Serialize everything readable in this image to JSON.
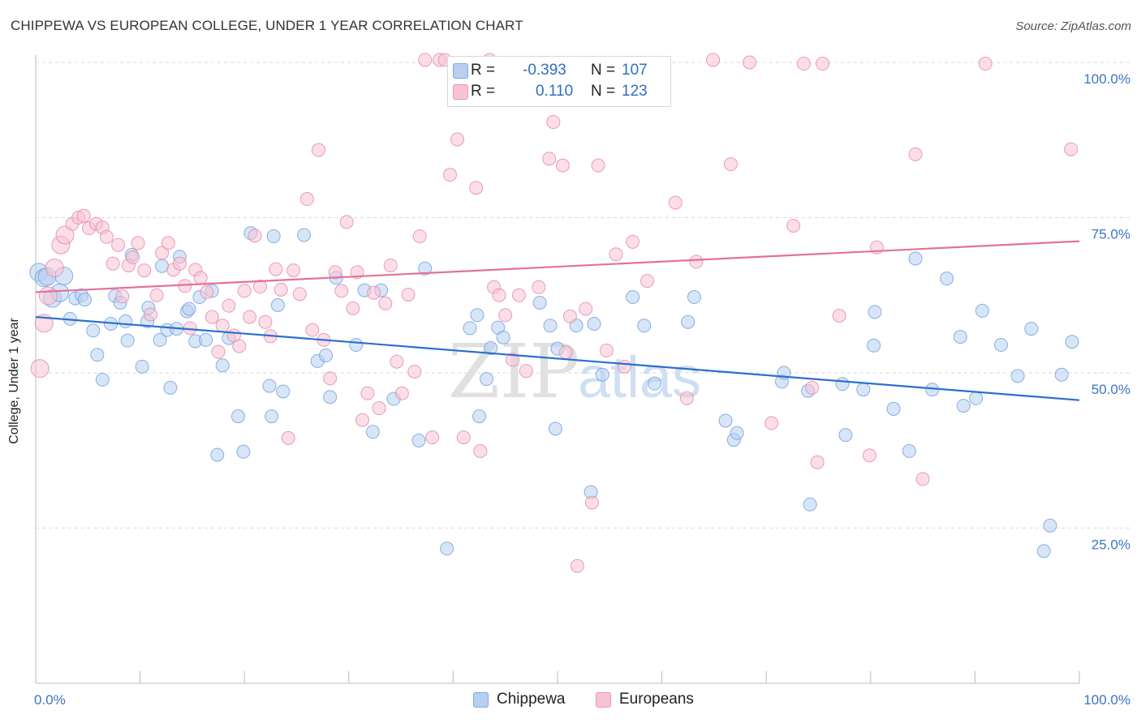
{
  "title": "CHIPPEWA VS EUROPEAN COLLEGE, UNDER 1 YEAR CORRELATION CHART",
  "source": "Source: ZipAtlas.com",
  "watermark": {
    "zip": "ZIP",
    "atlas": "atlas"
  },
  "legend": {
    "rows": [
      {
        "r_label": "R =",
        "r_value": "-0.393",
        "n_label": "N =",
        "n_value": "107",
        "color": "#b8cff0",
        "border": "#7ea6df"
      },
      {
        "r_label": "R =",
        "r_value": "0.110",
        "n_label": "N =",
        "n_value": "123",
        "color": "#f7c3d3",
        "border": "#ec94b2"
      }
    ]
  },
  "bottom_legend": [
    {
      "label": "Chippewa",
      "color": "#b8cff0",
      "border": "#7ea6df"
    },
    {
      "label": "Europeans",
      "color": "#f7c3d3",
      "border": "#ec94b2"
    }
  ],
  "chart_data": {
    "type": "scatter",
    "title": "CHIPPEWA VS EUROPEAN COLLEGE, UNDER 1 YEAR CORRELATION CHART",
    "xlabel": "",
    "ylabel": "College, Under 1 year",
    "xlim": [
      0,
      100
    ],
    "ylim": [
      0,
      100
    ],
    "x_tick_labels": [
      "0.0%",
      "100.0%"
    ],
    "y_tick_labels": [
      "25.0%",
      "50.0%",
      "75.0%",
      "100.0%"
    ],
    "y_ticks": [
      25,
      50,
      75,
      100
    ],
    "grid": "horizontal dashed",
    "legend_position": "top-center",
    "series": [
      {
        "name": "Chippewa",
        "color": "#6a9fdf",
        "fill": "#b8cff0",
        "trend": {
          "x": [
            0,
            100
          ],
          "y": [
            59.0,
            45.6
          ]
        },
        "points": [
          [
            0.3,
            66.2
          ],
          [
            0.8,
            65.3
          ],
          [
            1.1,
            65.5
          ],
          [
            1.6,
            62
          ],
          [
            2.3,
            62.9
          ],
          [
            2.7,
            65.6
          ],
          [
            3.3,
            58.7
          ],
          [
            3.8,
            62
          ],
          [
            4.4,
            62.5
          ],
          [
            4.7,
            61.8
          ],
          [
            5.5,
            56.8
          ],
          [
            5.9,
            52.9
          ],
          [
            6.4,
            48.9
          ],
          [
            7.2,
            57.9
          ],
          [
            7.6,
            62.4
          ],
          [
            8.1,
            61.3
          ],
          [
            8.6,
            58.3
          ],
          [
            8.8,
            55.2
          ],
          [
            9.2,
            69
          ],
          [
            10.2,
            51
          ],
          [
            10.7,
            58.3
          ],
          [
            10.8,
            60.5
          ],
          [
            11.9,
            55.3
          ],
          [
            12.1,
            67.2
          ],
          [
            12.6,
            56.9
          ],
          [
            12.9,
            47.6
          ],
          [
            13.5,
            57.1
          ],
          [
            13.8,
            68.7
          ],
          [
            14.5,
            59.9
          ],
          [
            14.7,
            60.3
          ],
          [
            15.3,
            55.1
          ],
          [
            15.7,
            62.2
          ],
          [
            16.3,
            55.3
          ],
          [
            16.9,
            63.2
          ],
          [
            17.4,
            36.8
          ],
          [
            17.9,
            51.2
          ],
          [
            18.5,
            55.6
          ],
          [
            19.4,
            43
          ],
          [
            19.9,
            37.3
          ],
          [
            20.6,
            72.5
          ],
          [
            22.4,
            47.9
          ],
          [
            22.6,
            43
          ],
          [
            22.8,
            72
          ],
          [
            23.2,
            60.9
          ],
          [
            23.7,
            47
          ],
          [
            25.7,
            72.2
          ],
          [
            27,
            51.9
          ],
          [
            27.8,
            52.8
          ],
          [
            28.2,
            46.1
          ],
          [
            28.8,
            65.3
          ],
          [
            30.7,
            54.5
          ],
          [
            31.5,
            63.3
          ],
          [
            32.3,
            40.5
          ],
          [
            33.1,
            63.3
          ],
          [
            34.3,
            45.8
          ],
          [
            36.7,
            39.1
          ],
          [
            37.3,
            66.8
          ],
          [
            39.4,
            21.7
          ],
          [
            41.6,
            57.2
          ],
          [
            42.3,
            59.3
          ],
          [
            42.5,
            43
          ],
          [
            43.2,
            49
          ],
          [
            43.6,
            54
          ],
          [
            44.3,
            57.3
          ],
          [
            44.8,
            55.7
          ],
          [
            48.3,
            61.3
          ],
          [
            49.3,
            57.6
          ],
          [
            49.8,
            41
          ],
          [
            50,
            53.9
          ],
          [
            51.8,
            57.6
          ],
          [
            53.2,
            30.8
          ],
          [
            53.5,
            57.9
          ],
          [
            54.3,
            49.7
          ],
          [
            57.2,
            62.2
          ],
          [
            58.3,
            57.6
          ],
          [
            59.3,
            48.3
          ],
          [
            62.5,
            58.2
          ],
          [
            63.1,
            62.2
          ],
          [
            66.1,
            42.3
          ],
          [
            66.9,
            39.2
          ],
          [
            67.2,
            40.3
          ],
          [
            71.5,
            48.6
          ],
          [
            71.7,
            50
          ],
          [
            74,
            47.1
          ],
          [
            74.2,
            28.8
          ],
          [
            77.3,
            48.2
          ],
          [
            77.6,
            40
          ],
          [
            79.3,
            47.3
          ],
          [
            80.3,
            54.4
          ],
          [
            80.4,
            59.8
          ],
          [
            82.2,
            44.2
          ],
          [
            83.7,
            37.4
          ],
          [
            84.3,
            68.4
          ],
          [
            85.9,
            47.3
          ],
          [
            87.3,
            65.2
          ],
          [
            88.6,
            55.8
          ],
          [
            88.9,
            44.7
          ],
          [
            90.1,
            45.9
          ],
          [
            90.7,
            60
          ],
          [
            92.5,
            54.5
          ],
          [
            94.1,
            49.5
          ],
          [
            95.4,
            57.1
          ],
          [
            96.6,
            21.3
          ],
          [
            97.2,
            25.4
          ],
          [
            98.3,
            49.7
          ],
          [
            99.3,
            55
          ]
        ]
      },
      {
        "name": "Europeans",
        "color": "#e685a6",
        "fill": "#f7c3d3",
        "trend": {
          "x": [
            0,
            100
          ],
          "y": [
            63.0,
            71.2
          ]
        },
        "points": [
          [
            0.4,
            50.7
          ],
          [
            0.8,
            58
          ],
          [
            1.2,
            62.4
          ],
          [
            1.8,
            66.9
          ],
          [
            2.4,
            70.6
          ],
          [
            2.8,
            72.2
          ],
          [
            3.5,
            74
          ],
          [
            4.1,
            75
          ],
          [
            4.6,
            75.3
          ],
          [
            5.1,
            73.3
          ],
          [
            5.8,
            74
          ],
          [
            6.4,
            73.4
          ],
          [
            6.8,
            71.9
          ],
          [
            7.4,
            67.6
          ],
          [
            7.9,
            70.6
          ],
          [
            8.3,
            62.3
          ],
          [
            8.9,
            67.3
          ],
          [
            9.3,
            68.6
          ],
          [
            9.8,
            70.9
          ],
          [
            10.4,
            66.5
          ],
          [
            11,
            59.4
          ],
          [
            11.6,
            62.5
          ],
          [
            12.1,
            69.3
          ],
          [
            12.7,
            70.9
          ],
          [
            13.2,
            66.6
          ],
          [
            13.8,
            67.6
          ],
          [
            14.3,
            64
          ],
          [
            14.8,
            57.2
          ],
          [
            15.3,
            66.6
          ],
          [
            15.8,
            65.3
          ],
          [
            16.4,
            63
          ],
          [
            16.9,
            59
          ],
          [
            17.5,
            53.4
          ],
          [
            17.9,
            57.6
          ],
          [
            18.5,
            60.8
          ],
          [
            19,
            56
          ],
          [
            19.5,
            54.3
          ],
          [
            20,
            63.2
          ],
          [
            20.5,
            59
          ],
          [
            21,
            72.1
          ],
          [
            21.5,
            63.9
          ],
          [
            22,
            58.2
          ],
          [
            22.5,
            55.9
          ],
          [
            23,
            66.7
          ],
          [
            23.5,
            63.4
          ],
          [
            24.2,
            39.5
          ],
          [
            24.7,
            66.5
          ],
          [
            25.3,
            62.7
          ],
          [
            26,
            78
          ],
          [
            26.5,
            56.9
          ],
          [
            27.1,
            85.9
          ],
          [
            27.6,
            55.3
          ],
          [
            28.2,
            49.1
          ],
          [
            28.7,
            66.2
          ],
          [
            29.3,
            63.2
          ],
          [
            29.8,
            74.3
          ],
          [
            30.4,
            60.4
          ],
          [
            30.8,
            66.2
          ],
          [
            31.3,
            42.4
          ],
          [
            31.8,
            46.7
          ],
          [
            32.4,
            62.9
          ],
          [
            32.9,
            44.3
          ],
          [
            33.5,
            61.2
          ],
          [
            34,
            67.3
          ],
          [
            34.6,
            51.8
          ],
          [
            35.1,
            46.7
          ],
          [
            35.7,
            62.6
          ],
          [
            36.3,
            50.2
          ],
          [
            36.8,
            72
          ],
          [
            37.3,
            100.4
          ],
          [
            38,
            39.6
          ],
          [
            38.7,
            100.4
          ],
          [
            39.2,
            100.4
          ],
          [
            39.7,
            81.9
          ],
          [
            40.4,
            87.6
          ],
          [
            41,
            39.6
          ],
          [
            41.6,
            99.8
          ],
          [
            42.2,
            79.8
          ],
          [
            42.6,
            37.4
          ],
          [
            43.5,
            100.4
          ],
          [
            43.9,
            63.8
          ],
          [
            44.4,
            62.5
          ],
          [
            45,
            59.3
          ],
          [
            45.7,
            52.1
          ],
          [
            46.3,
            62.5
          ],
          [
            47,
            50.3
          ],
          [
            48.2,
            63.8
          ],
          [
            48.6,
            99.8
          ],
          [
            49.2,
            84.5
          ],
          [
            49.6,
            90.4
          ],
          [
            50.5,
            83.4
          ],
          [
            50.8,
            53.3
          ],
          [
            51.2,
            59.1
          ],
          [
            51.9,
            18.9
          ],
          [
            52.7,
            60.3
          ],
          [
            53.3,
            29.1
          ],
          [
            53.9,
            83.4
          ],
          [
            54.7,
            53.6
          ],
          [
            55.6,
            69.1
          ],
          [
            56.4,
            51
          ],
          [
            57.2,
            71.1
          ],
          [
            58.6,
            64.8
          ],
          [
            60.2,
            99.8
          ],
          [
            61.3,
            77.4
          ],
          [
            62.4,
            45.9
          ],
          [
            63.3,
            67.9
          ],
          [
            64.9,
            100.4
          ],
          [
            66.6,
            83.6
          ],
          [
            68.4,
            100
          ],
          [
            70.5,
            41.9
          ],
          [
            72.6,
            73.7
          ],
          [
            73.6,
            99.8
          ],
          [
            74.4,
            47.6
          ],
          [
            74.9,
            35.6
          ],
          [
            75.4,
            99.8
          ],
          [
            77,
            59.2
          ],
          [
            79.9,
            36.7
          ],
          [
            80.6,
            70.2
          ],
          [
            84.3,
            85.2
          ],
          [
            85,
            32.9
          ],
          [
            91,
            99.8
          ],
          [
            99.2,
            86
          ]
        ]
      }
    ]
  }
}
